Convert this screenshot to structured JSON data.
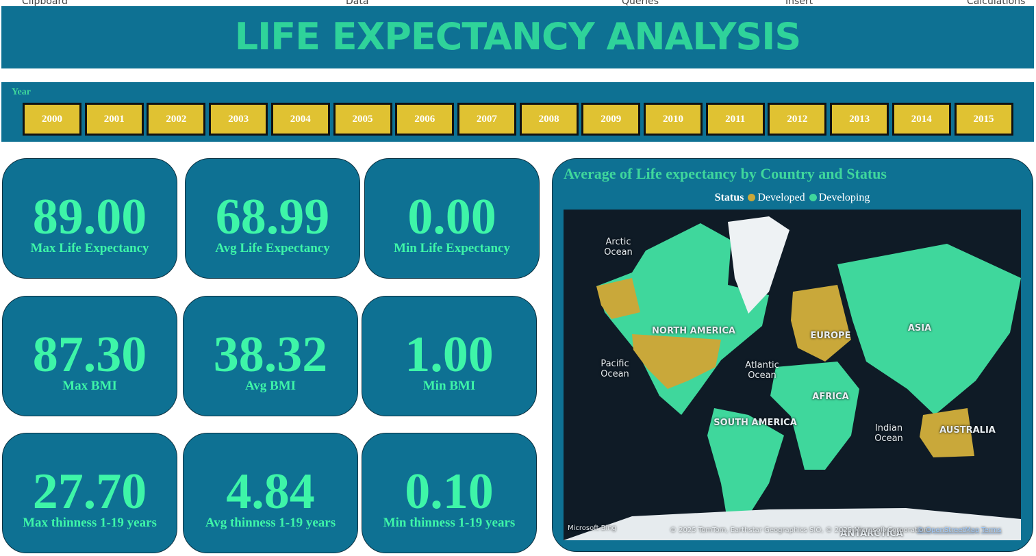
{
  "ribbon": [
    "Clipboard",
    "Data",
    "Queries",
    "Insert",
    "Calculations"
  ],
  "header": {
    "title": "LIFE EXPECTANCY ANALYSIS"
  },
  "slicer": {
    "title": "Year",
    "items": [
      "2000",
      "2001",
      "2002",
      "2003",
      "2004",
      "2005",
      "2006",
      "2007",
      "2008",
      "2009",
      "2010",
      "2011",
      "2012",
      "2013",
      "2014",
      "2015"
    ]
  },
  "cards": [
    {
      "value": "89.00",
      "label": "Max Life Expectancy"
    },
    {
      "value": "68.99",
      "label": "Avg Life Expectancy"
    },
    {
      "value": "0.00",
      "label": "Min Life Expectancy"
    },
    {
      "value": "87.30",
      "label": "Max BMI"
    },
    {
      "value": "38.32",
      "label": "Avg BMI"
    },
    {
      "value": "1.00",
      "label": "Min BMI"
    },
    {
      "value": "27.70",
      "label": "Max thinness  1-19 years"
    },
    {
      "value": "4.84",
      "label": "Avg thinness  1-19 years"
    },
    {
      "value": "0.10",
      "label": "Min thinness  1-19 years"
    }
  ],
  "map": {
    "title": "Average of Life expectancy by Country and Status",
    "legend": {
      "title": "Status",
      "items": [
        {
          "name": "Developed",
          "color": "#c9a83a"
        },
        {
          "name": "Developing",
          "color": "#3fd79c"
        }
      ]
    },
    "labels": [
      "Arctic Ocean",
      "NORTH AMERICA",
      "Pacific Ocean",
      "Atlantic Ocean",
      "EUROPE",
      "ASIA",
      "AFRICA",
      "SOUTH AMERICA",
      "Indian Ocean",
      "AUSTRALIA",
      "ANTARCTICA"
    ],
    "provider": "Microsoft Bing",
    "attribution": "© 2025 TomTom, Earthstar Geographics SIO, © 2025 Microsoft Corporation,",
    "osm": "© OpenStreetMap",
    "terms": "Terms"
  }
}
